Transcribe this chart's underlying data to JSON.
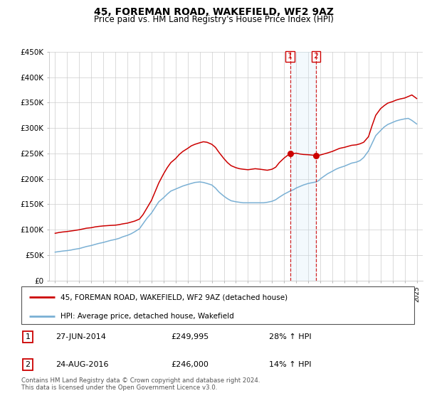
{
  "title": "45, FOREMAN ROAD, WAKEFIELD, WF2 9AZ",
  "subtitle": "Price paid vs. HM Land Registry's House Price Index (HPI)",
  "ylabel_ticks": [
    "£0",
    "£50K",
    "£100K",
    "£150K",
    "£200K",
    "£250K",
    "£300K",
    "£350K",
    "£400K",
    "£450K"
  ],
  "ytick_values": [
    0,
    50000,
    100000,
    150000,
    200000,
    250000,
    300000,
    350000,
    400000,
    450000
  ],
  "ylim": [
    0,
    450000
  ],
  "xlim_start": 1994.5,
  "xlim_end": 2025.5,
  "line_color_red": "#cc0000",
  "line_color_blue": "#7ab0d4",
  "marker_color": "#cc0000",
  "vline_color": "#cc0000",
  "shade_color": "#d0e8f8",
  "legend_label_red": "45, FOREMAN ROAD, WAKEFIELD, WF2 9AZ (detached house)",
  "legend_label_blue": "HPI: Average price, detached house, Wakefield",
  "sale1_date": "27-JUN-2014",
  "sale1_price": "£249,995",
  "sale1_hpi": "28% ↑ HPI",
  "sale1_x": 2014.49,
  "sale1_y": 249995,
  "sale2_date": "24-AUG-2016",
  "sale2_price": "£246,000",
  "sale2_hpi": "14% ↑ HPI",
  "sale2_x": 2016.64,
  "sale2_y": 246000,
  "footer": "Contains HM Land Registry data © Crown copyright and database right 2024.\nThis data is licensed under the Open Government Licence v3.0.",
  "red_data_x": [
    1995.0,
    1995.3,
    1995.6,
    1996.0,
    1996.3,
    1996.6,
    1997.0,
    1997.3,
    1997.6,
    1998.0,
    1998.3,
    1998.6,
    1999.0,
    1999.3,
    1999.6,
    2000.0,
    2000.3,
    2000.6,
    2001.0,
    2001.3,
    2001.6,
    2002.0,
    2002.3,
    2002.6,
    2003.0,
    2003.3,
    2003.6,
    2004.0,
    2004.3,
    2004.6,
    2005.0,
    2005.3,
    2005.6,
    2006.0,
    2006.3,
    2006.6,
    2007.0,
    2007.3,
    2007.6,
    2008.0,
    2008.3,
    2008.6,
    2009.0,
    2009.3,
    2009.6,
    2010.0,
    2010.3,
    2010.6,
    2011.0,
    2011.3,
    2011.6,
    2012.0,
    2012.3,
    2012.6,
    2013.0,
    2013.3,
    2013.6,
    2014.0,
    2014.49,
    2014.8,
    2015.0,
    2015.3,
    2015.6,
    2016.0,
    2016.64,
    2016.9,
    2017.0,
    2017.3,
    2017.6,
    2018.0,
    2018.3,
    2018.6,
    2019.0,
    2019.3,
    2019.6,
    2020.0,
    2020.3,
    2020.6,
    2021.0,
    2021.3,
    2021.6,
    2022.0,
    2022.3,
    2022.6,
    2023.0,
    2023.3,
    2023.6,
    2024.0,
    2024.3,
    2024.6,
    2025.0
  ],
  "red_data_y": [
    93000,
    94500,
    95500,
    96500,
    97500,
    98500,
    100000,
    101500,
    103000,
    104000,
    105500,
    106500,
    107500,
    108000,
    108500,
    109000,
    110000,
    111500,
    113000,
    115000,
    117000,
    121000,
    130000,
    142000,
    158000,
    175000,
    192000,
    210000,
    222000,
    232000,
    240000,
    248000,
    254000,
    260000,
    265000,
    268000,
    271000,
    273000,
    272000,
    268000,
    262000,
    252000,
    240000,
    232000,
    226000,
    222000,
    220000,
    219000,
    218000,
    219000,
    220000,
    219000,
    218000,
    217000,
    219000,
    223000,
    232000,
    241000,
    249995,
    250000,
    250500,
    249000,
    248000,
    247500,
    246000,
    246500,
    247000,
    249000,
    251000,
    254000,
    257000,
    260000,
    262000,
    264000,
    266000,
    267000,
    269000,
    272000,
    283000,
    305000,
    325000,
    338000,
    344000,
    349000,
    352000,
    355000,
    357000,
    359000,
    362000,
    365000,
    358000
  ],
  "blue_data_x": [
    1995.0,
    1995.3,
    1995.6,
    1996.0,
    1996.3,
    1996.6,
    1997.0,
    1997.3,
    1997.6,
    1998.0,
    1998.3,
    1998.6,
    1999.0,
    1999.3,
    1999.6,
    2000.0,
    2000.3,
    2000.6,
    2001.0,
    2001.3,
    2001.6,
    2002.0,
    2002.3,
    2002.6,
    2003.0,
    2003.3,
    2003.6,
    2004.0,
    2004.3,
    2004.6,
    2005.0,
    2005.3,
    2005.6,
    2006.0,
    2006.3,
    2006.6,
    2007.0,
    2007.3,
    2007.6,
    2008.0,
    2008.3,
    2008.6,
    2009.0,
    2009.3,
    2009.6,
    2010.0,
    2010.3,
    2010.6,
    2011.0,
    2011.3,
    2011.6,
    2012.0,
    2012.3,
    2012.6,
    2013.0,
    2013.3,
    2013.6,
    2014.0,
    2014.49,
    2014.8,
    2015.0,
    2015.3,
    2015.6,
    2016.0,
    2016.64,
    2016.9,
    2017.0,
    2017.3,
    2017.6,
    2018.0,
    2018.3,
    2018.6,
    2019.0,
    2019.3,
    2019.6,
    2020.0,
    2020.3,
    2020.6,
    2021.0,
    2021.3,
    2021.6,
    2022.0,
    2022.3,
    2022.6,
    2023.0,
    2023.3,
    2023.6,
    2024.0,
    2024.3,
    2024.6,
    2025.0
  ],
  "blue_data_y": [
    56000,
    57000,
    58000,
    59000,
    60000,
    61500,
    63000,
    65000,
    67000,
    69000,
    71000,
    73000,
    75000,
    77000,
    79000,
    81000,
    83000,
    86000,
    89000,
    92000,
    96000,
    102000,
    112000,
    122000,
    133000,
    144000,
    155000,
    163000,
    170000,
    176000,
    180000,
    183000,
    186000,
    189000,
    191000,
    193000,
    194000,
    193000,
    191000,
    188000,
    182000,
    174000,
    166000,
    161000,
    157000,
    155000,
    154000,
    153000,
    153000,
    153000,
    153000,
    153000,
    153000,
    154000,
    156000,
    159000,
    164000,
    170000,
    176000,
    179000,
    182000,
    185000,
    188000,
    191000,
    194000,
    197000,
    200000,
    205000,
    210000,
    215000,
    219000,
    222000,
    225000,
    228000,
    231000,
    233000,
    236000,
    242000,
    255000,
    270000,
    285000,
    295000,
    302000,
    307000,
    311000,
    314000,
    316000,
    318000,
    319000,
    315000,
    308000
  ]
}
